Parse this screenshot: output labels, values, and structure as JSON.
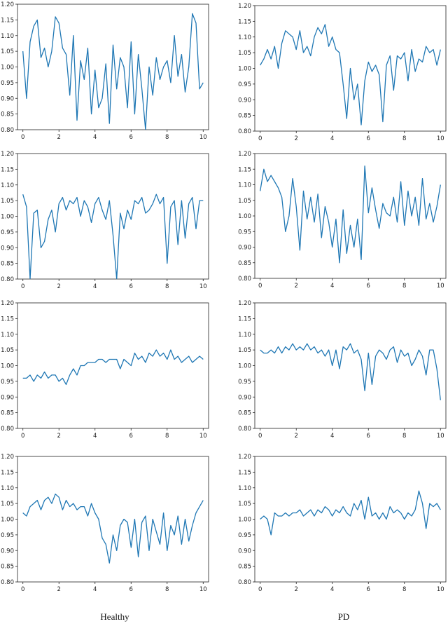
{
  "figure": {
    "col_labels": [
      "Healthy",
      "PD"
    ],
    "line_color": "#1f77b4"
  },
  "chart_data": [
    {
      "type": "line",
      "column": "Healthy",
      "row": 1,
      "xlim": [
        -0.3,
        10.3
      ],
      "ylim": [
        0.8,
        1.2
      ],
      "xticks": [
        0,
        2,
        4,
        6,
        8,
        10
      ],
      "yticks": [
        "0.80",
        "0.85",
        "0.90",
        "0.95",
        "1.00",
        "1.05",
        "1.10",
        "1.15",
        "1.20"
      ],
      "x": [
        0,
        0.2,
        0.4,
        0.6,
        0.8,
        1,
        1.2,
        1.4,
        1.6,
        1.8,
        2,
        2.2,
        2.4,
        2.6,
        2.8,
        3,
        3.2,
        3.4,
        3.6,
        3.8,
        4,
        4.2,
        4.4,
        4.6,
        4.8,
        5,
        5.2,
        5.4,
        5.6,
        5.8,
        6,
        6.2,
        6.4,
        6.6,
        6.8,
        7,
        7.2,
        7.4,
        7.6,
        7.8,
        8,
        8.2,
        8.4,
        8.6,
        8.8,
        9,
        9.2,
        9.4,
        9.6,
        9.8,
        10
      ],
      "y": [
        1.05,
        0.9,
        1.08,
        1.13,
        1.15,
        1.03,
        1.06,
        1.0,
        1.05,
        1.16,
        1.14,
        1.06,
        1.04,
        0.91,
        1.1,
        0.83,
        1.02,
        0.96,
        1.06,
        0.85,
        0.99,
        0.87,
        0.9,
        1.01,
        0.82,
        1.07,
        0.93,
        1.03,
        1.0,
        0.87,
        1.08,
        0.85,
        1.04,
        0.93,
        0.8,
        1.0,
        0.91,
        1.03,
        0.96,
        1.0,
        1.02,
        0.95,
        1.1,
        0.97,
        1.04,
        0.92,
        1.0,
        1.17,
        1.14,
        0.93,
        0.95
      ]
    },
    {
      "type": "line",
      "column": "PD",
      "row": 1,
      "xlim": [
        -0.3,
        10.3
      ],
      "ylim": [
        0.8,
        1.2
      ],
      "xticks": [
        0,
        2,
        4,
        6,
        8,
        10
      ],
      "yticks": [
        "0.80",
        "0.85",
        "0.90",
        "0.95",
        "1.00",
        "1.05",
        "1.10",
        "1.15",
        "1.20"
      ],
      "x": [
        0,
        0.2,
        0.4,
        0.6,
        0.8,
        1,
        1.2,
        1.4,
        1.6,
        1.8,
        2,
        2.2,
        2.4,
        2.6,
        2.8,
        3,
        3.2,
        3.4,
        3.6,
        3.8,
        4,
        4.2,
        4.4,
        4.6,
        4.8,
        5,
        5.2,
        5.4,
        5.6,
        5.8,
        6,
        6.2,
        6.4,
        6.6,
        6.8,
        7,
        7.2,
        7.4,
        7.6,
        7.8,
        8,
        8.2,
        8.4,
        8.6,
        8.8,
        9,
        9.2,
        9.4,
        9.6,
        9.8,
        10
      ],
      "y": [
        1.01,
        1.03,
        1.06,
        1.03,
        1.07,
        1.0,
        1.08,
        1.12,
        1.11,
        1.1,
        1.06,
        1.12,
        1.05,
        1.07,
        1.04,
        1.1,
        1.13,
        1.11,
        1.14,
        1.07,
        1.1,
        1.06,
        1.05,
        0.95,
        0.84,
        1.0,
        0.9,
        0.95,
        0.82,
        0.96,
        1.02,
        0.99,
        1.01,
        0.98,
        0.83,
        1.01,
        1.04,
        0.93,
        1.04,
        1.03,
        1.05,
        0.96,
        1.06,
        0.99,
        1.03,
        1.02,
        1.07,
        1.05,
        1.06,
        1.01,
        1.06
      ]
    },
    {
      "type": "line",
      "column": "Healthy",
      "row": 2,
      "xlim": [
        -0.3,
        10.3
      ],
      "ylim": [
        0.8,
        1.2
      ],
      "xticks": [
        0,
        2,
        4,
        6,
        8,
        10
      ],
      "yticks": [
        "0.80",
        "0.85",
        "0.90",
        "0.95",
        "1.00",
        "1.05",
        "1.10",
        "1.15",
        "1.20"
      ],
      "x": [
        0,
        0.2,
        0.4,
        0.6,
        0.8,
        1,
        1.2,
        1.4,
        1.6,
        1.8,
        2,
        2.2,
        2.4,
        2.6,
        2.8,
        3,
        3.2,
        3.4,
        3.6,
        3.8,
        4,
        4.2,
        4.4,
        4.6,
        4.8,
        5,
        5.2,
        5.4,
        5.6,
        5.8,
        6,
        6.2,
        6.4,
        6.6,
        6.8,
        7,
        7.2,
        7.4,
        7.6,
        7.8,
        8,
        8.2,
        8.4,
        8.6,
        8.8,
        9,
        9.2,
        9.4,
        9.6,
        9.8,
        10
      ],
      "y": [
        1.07,
        1.03,
        0.8,
        1.01,
        1.02,
        0.9,
        0.92,
        0.99,
        1.02,
        0.95,
        1.04,
        1.06,
        1.02,
        1.05,
        1.04,
        1.06,
        1.0,
        1.05,
        1.03,
        0.98,
        1.04,
        1.06,
        1.02,
        0.99,
        1.05,
        0.94,
        0.8,
        1.01,
        0.96,
        1.02,
        0.99,
        1.05,
        1.04,
        1.06,
        1.01,
        1.02,
        1.04,
        1.07,
        1.04,
        1.06,
        0.85,
        1.03,
        1.05,
        0.91,
        1.05,
        0.93,
        1.04,
        1.06,
        0.96,
        1.05,
        1.05
      ]
    },
    {
      "type": "line",
      "column": "PD",
      "row": 2,
      "xlim": [
        -0.3,
        10.3
      ],
      "ylim": [
        0.8,
        1.2
      ],
      "xticks": [
        0,
        2,
        4,
        6,
        8,
        10
      ],
      "yticks": [
        "0.80",
        "0.85",
        "0.90",
        "0.95",
        "1.00",
        "1.05",
        "1.10",
        "1.15",
        "1.20"
      ],
      "x": [
        0,
        0.2,
        0.4,
        0.6,
        0.8,
        1,
        1.2,
        1.4,
        1.6,
        1.8,
        2,
        2.2,
        2.4,
        2.6,
        2.8,
        3,
        3.2,
        3.4,
        3.6,
        3.8,
        4,
        4.2,
        4.4,
        4.6,
        4.8,
        5,
        5.2,
        5.4,
        5.6,
        5.8,
        6,
        6.2,
        6.4,
        6.6,
        6.8,
        7,
        7.2,
        7.4,
        7.6,
        7.8,
        8,
        8.2,
        8.4,
        8.6,
        8.8,
        9,
        9.2,
        9.4,
        9.6,
        9.8,
        10
      ],
      "y": [
        1.08,
        1.15,
        1.11,
        1.13,
        1.11,
        1.09,
        1.06,
        0.95,
        1.0,
        1.12,
        1.03,
        0.89,
        1.08,
        0.99,
        1.06,
        0.98,
        1.07,
        0.93,
        1.03,
        0.98,
        0.9,
        0.99,
        0.85,
        1.02,
        0.88,
        0.97,
        0.9,
        0.99,
        0.86,
        1.16,
        1.01,
        1.09,
        1.02,
        0.96,
        1.04,
        1.01,
        1.0,
        1.06,
        0.98,
        1.11,
        0.97,
        1.08,
        1.0,
        1.06,
        0.97,
        1.12,
        0.99,
        1.04,
        0.98,
        1.03,
        1.1
      ]
    },
    {
      "type": "line",
      "column": "Healthy",
      "row": 3,
      "xlim": [
        -0.3,
        10.3
      ],
      "ylim": [
        0.8,
        1.2
      ],
      "xticks": [
        0,
        2,
        4,
        6,
        8,
        10
      ],
      "yticks": [
        "0.80",
        "0.85",
        "0.90",
        "0.95",
        "1.00",
        "1.05",
        "1.10",
        "1.15",
        "1.20"
      ],
      "x": [
        0,
        0.2,
        0.4,
        0.6,
        0.8,
        1,
        1.2,
        1.4,
        1.6,
        1.8,
        2,
        2.2,
        2.4,
        2.6,
        2.8,
        3,
        3.2,
        3.4,
        3.6,
        3.8,
        4,
        4.2,
        4.4,
        4.6,
        4.8,
        5,
        5.2,
        5.4,
        5.6,
        5.8,
        6,
        6.2,
        6.4,
        6.6,
        6.8,
        7,
        7.2,
        7.4,
        7.6,
        7.8,
        8,
        8.2,
        8.4,
        8.6,
        8.8,
        9,
        9.2,
        9.4,
        9.6,
        9.8,
        10
      ],
      "y": [
        0.96,
        0.96,
        0.97,
        0.95,
        0.97,
        0.96,
        0.98,
        0.96,
        0.97,
        0.97,
        0.95,
        0.96,
        0.94,
        0.97,
        0.99,
        0.97,
        1.0,
        1.0,
        1.01,
        1.01,
        1.01,
        1.02,
        1.02,
        1.01,
        1.02,
        1.02,
        1.02,
        0.99,
        1.02,
        1.01,
        1.0,
        1.04,
        1.02,
        1.03,
        1.01,
        1.04,
        1.03,
        1.05,
        1.03,
        1.04,
        1.02,
        1.05,
        1.02,
        1.03,
        1.01,
        1.02,
        1.03,
        1.01,
        1.02,
        1.03,
        1.02
      ]
    },
    {
      "type": "line",
      "column": "PD",
      "row": 3,
      "xlim": [
        -0.3,
        10.3
      ],
      "ylim": [
        0.8,
        1.2
      ],
      "xticks": [
        0,
        2,
        4,
        6,
        8,
        10
      ],
      "yticks": [
        "0.80",
        "0.85",
        "0.90",
        "0.95",
        "1.00",
        "1.05",
        "1.10",
        "1.15",
        "1.20"
      ],
      "x": [
        0,
        0.2,
        0.4,
        0.6,
        0.8,
        1,
        1.2,
        1.4,
        1.6,
        1.8,
        2,
        2.2,
        2.4,
        2.6,
        2.8,
        3,
        3.2,
        3.4,
        3.6,
        3.8,
        4,
        4.2,
        4.4,
        4.6,
        4.8,
        5,
        5.2,
        5.4,
        5.6,
        5.8,
        6,
        6.2,
        6.4,
        6.6,
        6.8,
        7,
        7.2,
        7.4,
        7.6,
        7.8,
        8,
        8.2,
        8.4,
        8.6,
        8.8,
        9,
        9.2,
        9.4,
        9.6,
        9.8,
        10
      ],
      "y": [
        1.05,
        1.04,
        1.04,
        1.05,
        1.04,
        1.06,
        1.04,
        1.06,
        1.05,
        1.07,
        1.05,
        1.06,
        1.05,
        1.07,
        1.05,
        1.06,
        1.04,
        1.05,
        1.03,
        1.05,
        1.0,
        1.05,
        0.99,
        1.06,
        1.05,
        1.07,
        1.04,
        1.05,
        1.02,
        0.92,
        1.04,
        0.94,
        1.03,
        1.05,
        1.04,
        1.02,
        1.05,
        1.06,
        1.01,
        1.05,
        1.03,
        1.04,
        1.0,
        1.02,
        1.05,
        1.03,
        0.97,
        1.05,
        1.05,
        0.99,
        0.89
      ]
    },
    {
      "type": "line",
      "column": "Healthy",
      "row": 4,
      "xlim": [
        -0.3,
        10.3
      ],
      "ylim": [
        0.8,
        1.2
      ],
      "xticks": [
        0,
        2,
        4,
        6,
        8,
        10
      ],
      "yticks": [
        "0.80",
        "0.85",
        "0.90",
        "0.95",
        "1.00",
        "1.05",
        "1.10",
        "1.15",
        "1.20"
      ],
      "x": [
        0,
        0.2,
        0.4,
        0.6,
        0.8,
        1,
        1.2,
        1.4,
        1.6,
        1.8,
        2,
        2.2,
        2.4,
        2.6,
        2.8,
        3,
        3.2,
        3.4,
        3.6,
        3.8,
        4,
        4.2,
        4.4,
        4.6,
        4.8,
        5,
        5.2,
        5.4,
        5.6,
        5.8,
        6,
        6.2,
        6.4,
        6.6,
        6.8,
        7,
        7.2,
        7.4,
        7.6,
        7.8,
        8,
        8.2,
        8.4,
        8.6,
        8.8,
        9,
        9.2,
        9.4,
        9.6,
        9.8,
        10
      ],
      "y": [
        1.02,
        1.01,
        1.04,
        1.05,
        1.06,
        1.03,
        1.06,
        1.07,
        1.05,
        1.08,
        1.07,
        1.03,
        1.06,
        1.04,
        1.05,
        1.03,
        1.04,
        1.04,
        1.01,
        1.05,
        1.02,
        1.0,
        0.94,
        0.92,
        0.86,
        0.95,
        0.9,
        0.98,
        1.0,
        0.99,
        0.91,
        1.0,
        0.88,
        0.99,
        1.01,
        0.9,
        1.0,
        0.96,
        0.92,
        1.02,
        0.9,
        0.98,
        0.95,
        1.01,
        0.92,
        1.0,
        0.93,
        0.98,
        1.02,
        1.04,
        1.06
      ]
    },
    {
      "type": "line",
      "column": "PD",
      "row": 4,
      "xlim": [
        -0.3,
        10.3
      ],
      "ylim": [
        0.8,
        1.2
      ],
      "xticks": [
        0,
        2,
        4,
        6,
        8,
        10
      ],
      "yticks": [
        "0.80",
        "0.85",
        "0.90",
        "0.95",
        "1.00",
        "1.05",
        "1.10",
        "1.15",
        "1.20"
      ],
      "x": [
        0,
        0.2,
        0.4,
        0.6,
        0.8,
        1,
        1.2,
        1.4,
        1.6,
        1.8,
        2,
        2.2,
        2.4,
        2.6,
        2.8,
        3,
        3.2,
        3.4,
        3.6,
        3.8,
        4,
        4.2,
        4.4,
        4.6,
        4.8,
        5,
        5.2,
        5.4,
        5.6,
        5.8,
        6,
        6.2,
        6.4,
        6.6,
        6.8,
        7,
        7.2,
        7.4,
        7.6,
        7.8,
        8,
        8.2,
        8.4,
        8.6,
        8.8,
        9,
        9.2,
        9.4,
        9.6,
        9.8,
        10
      ],
      "y": [
        1.0,
        1.01,
        1.0,
        0.95,
        1.02,
        1.01,
        1.01,
        1.02,
        1.01,
        1.02,
        1.02,
        1.03,
        1.01,
        1.02,
        1.03,
        1.01,
        1.03,
        1.02,
        1.04,
        1.03,
        1.01,
        1.03,
        1.02,
        1.04,
        1.02,
        1.01,
        1.05,
        1.03,
        1.06,
        1.0,
        1.07,
        1.01,
        1.02,
        1.0,
        1.02,
        1.0,
        1.04,
        1.02,
        1.03,
        1.02,
        1.0,
        1.02,
        1.01,
        1.03,
        1.09,
        1.05,
        0.97,
        1.05,
        1.04,
        1.05,
        1.03
      ]
    }
  ]
}
